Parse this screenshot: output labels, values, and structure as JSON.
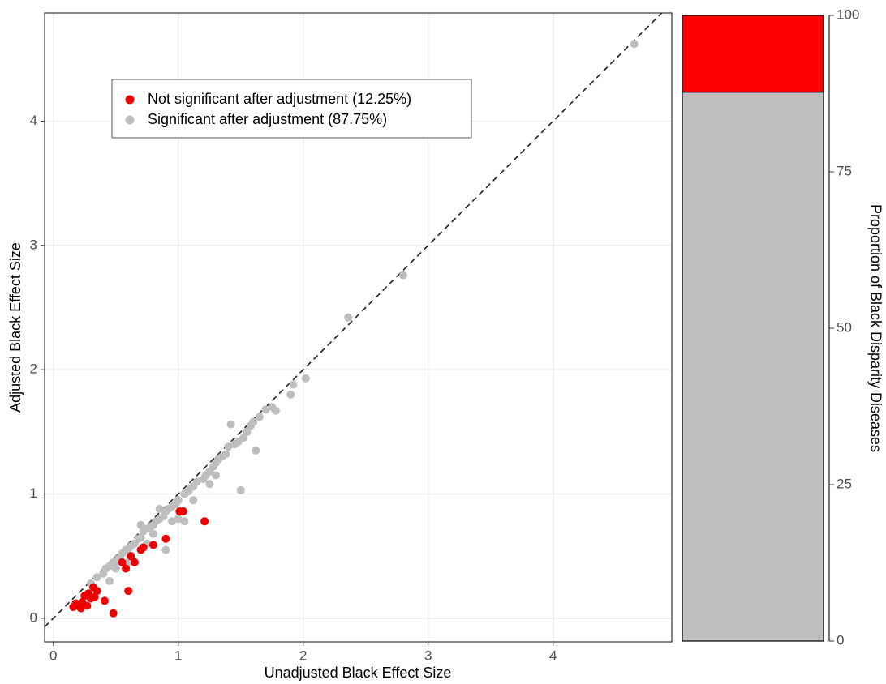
{
  "chart_data": [
    {
      "type": "scatter",
      "xlabel": "Unadjusted Black Effect Size",
      "ylabel": "Adjusted Black Effect Size",
      "xlim": [
        -0.07,
        4.95
      ],
      "ylim": [
        -0.19,
        4.87
      ],
      "xticks": [
        0,
        1,
        2,
        3,
        4
      ],
      "yticks": [
        0,
        1,
        2,
        3,
        4
      ],
      "grid": true,
      "identity_line": true,
      "legend": "upper left",
      "series": [
        {
          "name": "Not significant after adjustment (12.25%)",
          "color": "#ee0000",
          "x": [
            0.16,
            0.18,
            0.2,
            0.22,
            0.23,
            0.25,
            0.28,
            0.3,
            0.32,
            0.33,
            0.35,
            0.41,
            0.48,
            0.55,
            0.58,
            0.6,
            0.62,
            0.65,
            0.7,
            0.72,
            0.8,
            0.9,
            1.01,
            1.04,
            1.21,
            0.27,
            0.21
          ],
          "values": [
            0.09,
            0.12,
            0.1,
            0.08,
            0.13,
            0.18,
            0.2,
            0.16,
            0.25,
            0.17,
            0.22,
            0.14,
            0.04,
            0.45,
            0.4,
            0.22,
            0.5,
            0.45,
            0.55,
            0.57,
            0.59,
            0.64,
            0.86,
            0.86,
            0.78,
            0.1,
            0.11
          ]
        },
        {
          "name": "Significant after adjustment (87.75%)",
          "color": "#bebebe",
          "x": [
            0.3,
            0.35,
            0.4,
            0.42,
            0.45,
            0.48,
            0.5,
            0.52,
            0.55,
            0.58,
            0.6,
            0.62,
            0.65,
            0.68,
            0.7,
            0.72,
            0.75,
            0.78,
            0.8,
            0.82,
            0.85,
            0.88,
            0.9,
            0.92,
            0.95,
            0.98,
            1.0,
            1.05,
            1.08,
            1.1,
            1.12,
            1.15,
            1.2,
            1.22,
            1.25,
            1.28,
            1.3,
            1.32,
            1.35,
            1.38,
            1.4,
            1.42,
            1.45,
            1.48,
            1.5,
            1.52,
            1.55,
            1.58,
            1.6,
            1.65,
            1.7,
            1.75,
            1.78,
            1.9,
            1.92,
            2.02,
            2.36,
            2.8,
            4.65,
            0.7,
            0.85,
            0.9,
            0.8,
            0.6,
            1.0,
            1.05,
            1.12,
            1.3,
            1.25,
            1.62,
            0.45,
            0.5,
            0.75,
            0.95
          ],
          "values": [
            0.28,
            0.33,
            0.36,
            0.4,
            0.42,
            0.45,
            0.46,
            0.48,
            0.52,
            0.55,
            0.56,
            0.58,
            0.6,
            0.64,
            0.65,
            0.7,
            0.72,
            0.74,
            0.75,
            0.78,
            0.8,
            0.82,
            0.86,
            0.88,
            0.9,
            0.92,
            0.95,
            1.0,
            1.02,
            1.05,
            1.06,
            1.1,
            1.12,
            1.15,
            1.18,
            1.22,
            1.25,
            1.28,
            1.3,
            1.32,
            1.38,
            1.56,
            1.4,
            1.42,
            1.03,
            1.45,
            1.5,
            1.55,
            1.58,
            1.62,
            1.68,
            1.7,
            1.67,
            1.8,
            1.88,
            1.93,
            2.42,
            2.76,
            4.62,
            0.75,
            0.88,
            0.55,
            0.68,
            0.45,
            0.8,
            0.78,
            0.95,
            1.15,
            1.08,
            1.35,
            0.3,
            0.4,
            0.6,
            0.78
          ]
        }
      ]
    },
    {
      "type": "stacked_bar",
      "ylabel": "Proportion of Black Disparity Diseases",
      "ylim": [
        0,
        100
      ],
      "yticks": [
        0,
        25,
        50,
        75,
        100
      ],
      "y_axis_side": "right",
      "categories": [
        null
      ],
      "series": [
        {
          "color": "#bebebe",
          "values": [
            87.75
          ]
        },
        {
          "color": "#ff0000",
          "values": [
            12.25
          ]
        }
      ]
    }
  ]
}
